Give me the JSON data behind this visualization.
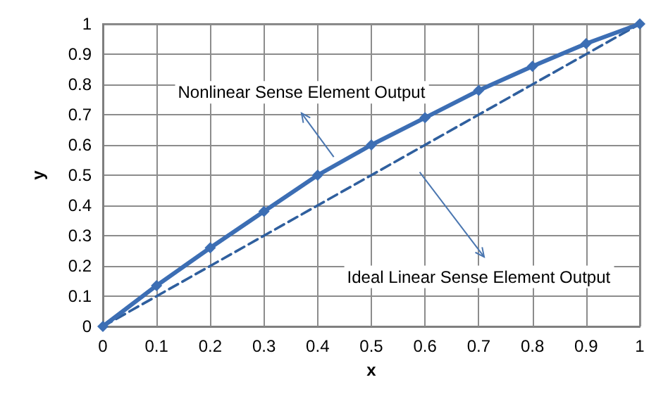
{
  "chart_data": {
    "type": "line",
    "xlabel": "x",
    "ylabel": "y",
    "x": [
      0,
      0.1,
      0.2,
      0.3,
      0.4,
      0.5,
      0.6,
      0.7,
      0.8,
      0.9,
      1
    ],
    "series": [
      {
        "color": "#3c6eb4",
        "marker": "diamond",
        "line_style": "solid",
        "values": [
          0,
          0.135,
          0.26,
          0.38,
          0.5,
          0.6,
          0.69,
          0.78,
          0.86,
          0.935,
          1
        ]
      },
      {
        "color": "#2f5f9e",
        "marker": "none",
        "line_style": "dashed",
        "values": [
          0,
          0.1,
          0.2,
          0.3,
          0.4,
          0.5,
          0.6,
          0.7,
          0.8,
          0.9,
          1
        ]
      }
    ],
    "annotations": [
      "Nonlinear Sense Element Output",
      "Ideal Linear Sense Element Output"
    ],
    "xlim": [
      0,
      1
    ],
    "ylim": [
      0,
      1
    ],
    "xticks": [
      0,
      0.1,
      0.2,
      0.3,
      0.4,
      0.5,
      0.6,
      0.7,
      0.8,
      0.9,
      1
    ],
    "yticks": [
      0,
      0.1,
      0.2,
      0.3,
      0.4,
      0.5,
      0.6,
      0.7,
      0.8,
      0.9,
      1
    ],
    "grid": true
  }
}
